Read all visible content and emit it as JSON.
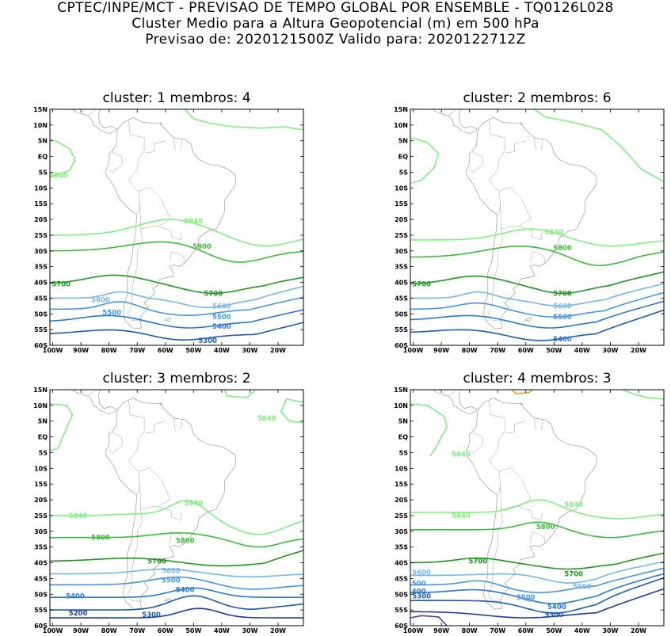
{
  "header": {
    "line1": "CPTEC/INPE/MCT - PREVISAO DE TEMPO GLOBAL POR ENSEMBLE - TQ0126L028",
    "line2": "Cluster Medio para a Altura Geopotencial (m) em 500 hPa",
    "line3": "Previsao de: 2020121500Z    Valido para: 2020122712Z"
  },
  "axes": {
    "lat_labels": [
      "15N",
      "10N",
      "5N",
      "EQ",
      "5S",
      "10S",
      "15S",
      "20S",
      "25S",
      "30S",
      "35S",
      "40S",
      "45S",
      "50S",
      "55S",
      "60S"
    ],
    "lon_labels": [
      "100W",
      "90W",
      "80W",
      "70W",
      "60W",
      "50W",
      "40W",
      "30W",
      "20W"
    ]
  },
  "colors": {
    "c5840": "#80f080",
    "c5800": "#3cbc3c",
    "c5700": "#1e961e",
    "c5600": "#78b4f0",
    "c5500": "#4696e6",
    "c5400": "#2878d2",
    "c5300": "#1e5ab4",
    "c5200": "#1e3ca0",
    "c5100": "#5a3cb4",
    "cHigh": "#f0a000"
  },
  "panels": [
    {
      "title": "cluster: 1   membros: 4",
      "labels": [
        {
          "text": "5840",
          "lon": -98,
          "lat": -6,
          "level": "c5840"
        },
        {
          "text": "5840",
          "lon": -50,
          "lat": -20.5,
          "level": "c5840"
        },
        {
          "text": "5800",
          "lon": -47,
          "lat": -28.5,
          "level": "c5800"
        },
        {
          "text": "5700",
          "lon": -97,
          "lat": -40.5,
          "level": "c5700"
        },
        {
          "text": "5700",
          "lon": -43,
          "lat": -43.5,
          "level": "c5700"
        },
        {
          "text": "5600",
          "lon": -83,
          "lat": -45.5,
          "level": "c5600"
        },
        {
          "text": "5600",
          "lon": -40,
          "lat": -47.5,
          "level": "c5600"
        },
        {
          "text": "5500",
          "lon": -79,
          "lat": -49.5,
          "level": "c5500"
        },
        {
          "text": "5500",
          "lon": -40,
          "lat": -51,
          "level": "c5500"
        },
        {
          "text": "5400",
          "lon": -40,
          "lat": -54,
          "level": "c5400"
        },
        {
          "text": "5300",
          "lon": -45,
          "lat": -58.5,
          "level": "c5300"
        }
      ]
    },
    {
      "title": "cluster: 2   membros: 6",
      "labels": [
        {
          "text": "5840",
          "lon": -50,
          "lat": -24,
          "level": "c5840"
        },
        {
          "text": "5800",
          "lon": -47,
          "lat": -29,
          "level": "c5800"
        },
        {
          "text": "5700",
          "lon": -97,
          "lat": -40.5,
          "level": "c5700"
        },
        {
          "text": "5700",
          "lon": -47,
          "lat": -43.5,
          "level": "c5700"
        },
        {
          "text": "5600",
          "lon": -47,
          "lat": -47.5,
          "level": "c5600"
        },
        {
          "text": "5500",
          "lon": -47,
          "lat": -51,
          "level": "c5500"
        },
        {
          "text": "5400",
          "lon": -47,
          "lat": -58,
          "level": "c5400"
        }
      ]
    },
    {
      "title": "cluster: 3   membros: 2",
      "labels": [
        {
          "text": "5840",
          "lon": -24,
          "lat": 6,
          "level": "c5840"
        },
        {
          "text": "5840",
          "lon": -50,
          "lat": -21,
          "level": "c5840"
        },
        {
          "text": "5840",
          "lon": -91,
          "lat": -25,
          "level": "c5840"
        },
        {
          "text": "5800",
          "lon": -83,
          "lat": -32,
          "level": "c5800"
        },
        {
          "text": "5800",
          "lon": -53,
          "lat": -33,
          "level": "c5800"
        },
        {
          "text": "5700",
          "lon": -63,
          "lat": -39.5,
          "level": "c5700"
        },
        {
          "text": "5600",
          "lon": -58,
          "lat": -42.5,
          "level": "c5600"
        },
        {
          "text": "5500",
          "lon": -58,
          "lat": -45.5,
          "level": "c5500"
        },
        {
          "text": "5400",
          "lon": -53,
          "lat": -48.5,
          "level": "c5400"
        },
        {
          "text": "5400",
          "lon": -92,
          "lat": -50.5,
          "level": "c5400"
        },
        {
          "text": "5300",
          "lon": -65,
          "lat": -56.5,
          "level": "c5300"
        },
        {
          "text": "5200",
          "lon": -91,
          "lat": -56,
          "level": "c5200"
        }
      ]
    },
    {
      "title": "cluster: 4   membros: 3",
      "labels": [
        {
          "text": "5840",
          "lon": -83,
          "lat": -5.5,
          "level": "c5840"
        },
        {
          "text": "5840",
          "lon": -43,
          "lat": -21.5,
          "level": "c5840"
        },
        {
          "text": "5840",
          "lon": -83,
          "lat": -25,
          "level": "c5840"
        },
        {
          "text": "5800",
          "lon": -53,
          "lat": -28.5,
          "level": "c5800"
        },
        {
          "text": "5700",
          "lon": -77,
          "lat": -39.5,
          "level": "c5700"
        },
        {
          "text": "5700",
          "lon": -43,
          "lat": -43.5,
          "level": "c5700"
        },
        {
          "text": "5600",
          "lon": -97,
          "lat": -43,
          "level": "c5600"
        },
        {
          "text": "5600",
          "lon": -40,
          "lat": -47.5,
          "level": "c5600"
        },
        {
          "text": "500",
          "lon": -98,
          "lat": -46.5,
          "level": "c5500"
        },
        {
          "text": "400",
          "lon": -98,
          "lat": -49,
          "level": "c5400"
        },
        {
          "text": "5300",
          "lon": -97,
          "lat": -50.5,
          "level": "c5300"
        },
        {
          "text": "5500",
          "lon": -60,
          "lat": -51,
          "level": "c5500"
        },
        {
          "text": "5400",
          "lon": -49,
          "lat": -54,
          "level": "c5400"
        },
        {
          "text": "5300",
          "lon": -50,
          "lat": -56.5,
          "level": "c5300"
        }
      ]
    }
  ]
}
